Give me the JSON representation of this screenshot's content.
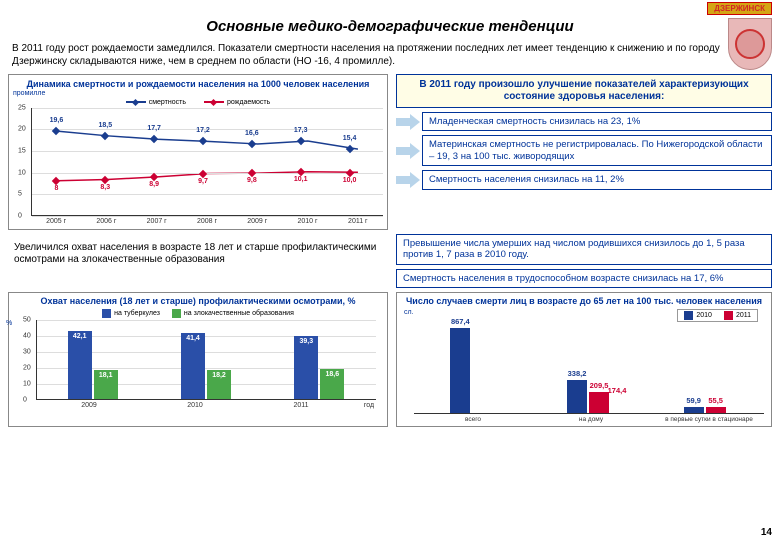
{
  "badge": "ДЗЕРЖИНСК",
  "title": "Основные медико-демографические тенденции",
  "intro": "В 2011 году рост рождаемости замедлился. Показатели смертности населения на протяжении последних лет имеет тенденцию к снижению и по городу Дзержинску складываются ниже, чем в среднем по области (НО -16, 4 промилле).",
  "chart1": {
    "title": "Динамика смертности и рождаемости населения на 1000 человек населения",
    "ylabel": "промилле",
    "legend_death": "смертность",
    "legend_birth": "рождаемость",
    "death_color": "#1a3d8f",
    "birth_color": "#cc0033",
    "ylim": [
      0,
      25
    ],
    "yticks": [
      0,
      5,
      10,
      15,
      20,
      25
    ],
    "categories": [
      "2005 г",
      "2006 г",
      "2007 г",
      "2008 г",
      "2009 г",
      "2010 г",
      "2011 г"
    ],
    "death": [
      19.6,
      18.5,
      17.7,
      17.2,
      16.6,
      17.3,
      15.4
    ],
    "birth": [
      8,
      8.3,
      8.9,
      9.7,
      9.8,
      10.1,
      10.0
    ],
    "death_labels": [
      "19,6",
      "18,5",
      "17,7",
      "17,2",
      "16,6",
      "17,3",
      "15,4"
    ],
    "birth_labels": [
      "8",
      "8,3",
      "8,9",
      "9,7",
      "9,8",
      "10,1",
      "10,0"
    ]
  },
  "header_box": "В 2011 году произошло улучшение показателей характеризующих состояние здоровья населения:",
  "notes": [
    "Младенческая смертность снизилась на 23, 1%",
    "Материнская смертность не регистрировалась. По Нижегородской области – 19, 3 на 100 тыс. живородящих",
    "Смертность населения снизилась  на 11, 2%"
  ],
  "left_note": "Увеличился охват населения в возрасте 18 лет и старше профилактическими осмотрами на злокачественные образования",
  "notes2": [
    "Превышение числа умерших над числом родившихся снизилось до 1, 5 раза против 1, 7 раза в 2010 году.",
    "Смертность населения в трудоспособном возрасте снизилась  на 17, 6%"
  ],
  "chart2": {
    "title": "Охват населения (18 лет и старше) профилактическими осмотрами, %",
    "ylabel": "%",
    "xlabel": "год",
    "legend_tb": "на туберкулез",
    "legend_onc": "на злокачественные образования",
    "tb_color": "#2a4fa8",
    "onc_color": "#4aa84a",
    "ylim": [
      0,
      50
    ],
    "yticks": [
      0,
      10,
      20,
      30,
      40,
      50
    ],
    "categories": [
      "2009",
      "2010",
      "2011"
    ],
    "tb": [
      42.1,
      41.4,
      39.3
    ],
    "onc": [
      18.1,
      18.2,
      18.6
    ],
    "tb_labels": [
      "42,1",
      "41,4",
      "39,3"
    ],
    "onc_labels": [
      "18,1",
      "18,2",
      "18,6"
    ]
  },
  "chart3": {
    "title": "Число случаев смерти лиц в возрасте до 65 лет на 100 тыс. человек населения",
    "ylabel": "сл.",
    "legend_2010": "2010",
    "legend_2011": "2011",
    "c2010": "#1a3d8f",
    "c2011": "#cc0033",
    "categories": [
      "всего",
      "на дому",
      "в первые сутки в стационаре"
    ],
    "v2010": [
      867.4,
      338.2,
      59.9
    ],
    "v2011": [
      0,
      209.5,
      55.5
    ],
    "v2010_labels": [
      "867,4",
      "338,2",
      "59,9"
    ],
    "v2011_labels": [
      "",
      "209,5",
      "55,5"
    ],
    "extra_label": "174,4",
    "ymax": 900
  },
  "page_number": "14",
  "colors": {
    "box_border": "#003399",
    "box_bg": "#fffde6",
    "arrow": "#b8d4ea"
  }
}
